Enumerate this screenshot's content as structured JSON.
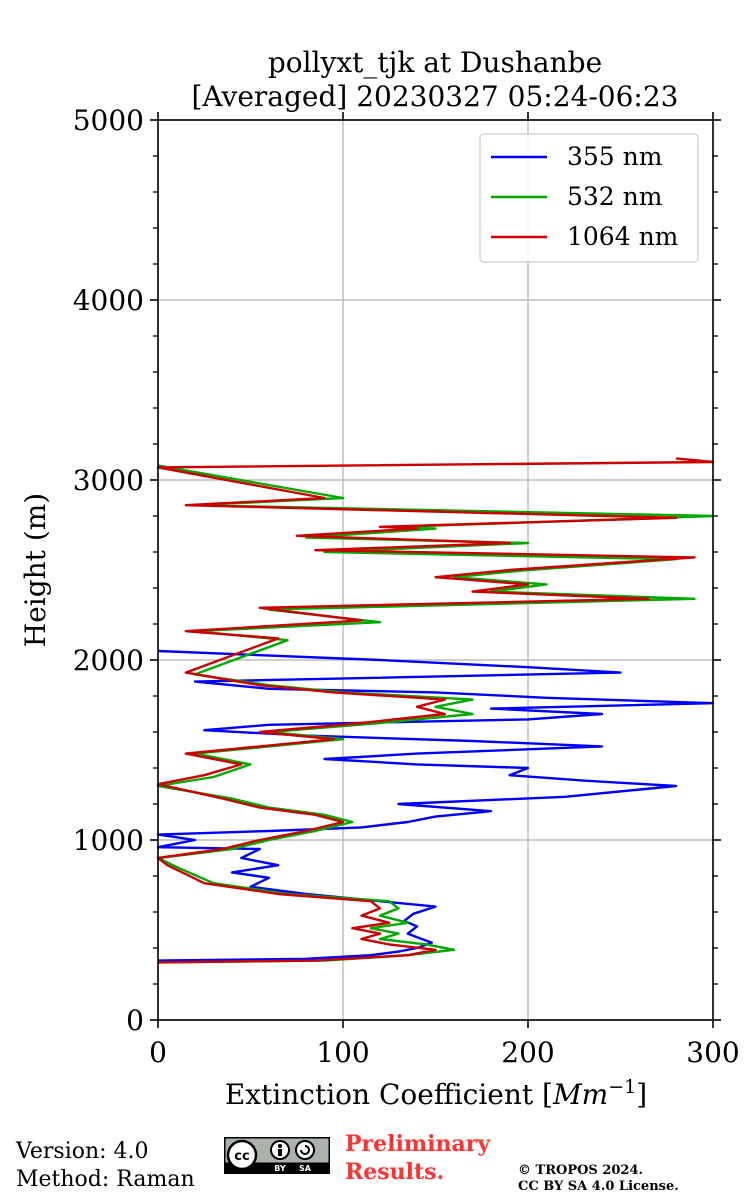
{
  "chart_data": {
    "type": "line",
    "title_line1": "pollyxt_tjk at Dushanbe",
    "title_line2": "[Averaged] 20230327 05:24-06:23",
    "xlabel": "Extinction Coefficient [",
    "xlabel_unit_main": "Mm",
    "xlabel_unit_exp": "−1",
    "xlabel_close": "]",
    "ylabel": "Height (m)",
    "xlim": [
      0,
      300
    ],
    "ylim": [
      0,
      5000
    ],
    "xticks": [
      "0",
      "100",
      "200",
      "300"
    ],
    "yticks": [
      "0",
      "1000",
      "2000",
      "3000",
      "4000",
      "5000"
    ],
    "grid": true,
    "legend_position": "top-right",
    "series": [
      {
        "name": "355 nm",
        "color": "#0000ff",
        "points": [
          [
            0,
            330
          ],
          [
            80,
            340
          ],
          [
            115,
            360
          ],
          [
            130,
            380
          ],
          [
            140,
            400
          ],
          [
            148,
            430
          ],
          [
            140,
            460
          ],
          [
            135,
            480
          ],
          [
            140,
            520
          ],
          [
            133,
            550
          ],
          [
            138,
            590
          ],
          [
            150,
            630
          ],
          [
            120,
            660
          ],
          [
            80,
            700
          ],
          [
            50,
            740
          ],
          [
            60,
            790
          ],
          [
            40,
            820
          ],
          [
            65,
            860
          ],
          [
            45,
            900
          ],
          [
            55,
            950
          ],
          [
            0,
            960
          ],
          [
            20,
            1000
          ],
          [
            0,
            1030
          ],
          [
            60,
            1050
          ],
          [
            110,
            1070
          ],
          [
            135,
            1100
          ],
          [
            150,
            1130
          ],
          [
            180,
            1160
          ],
          [
            130,
            1200
          ],
          [
            220,
            1240
          ],
          [
            280,
            1300
          ],
          [
            230,
            1330
          ],
          [
            190,
            1360
          ],
          [
            200,
            1400
          ],
          [
            140,
            1420
          ],
          [
            90,
            1450
          ],
          [
            140,
            1480
          ],
          [
            240,
            1520
          ],
          [
            170,
            1550
          ],
          [
            80,
            1580
          ],
          [
            25,
            1610
          ],
          [
            60,
            1640
          ],
          [
            200,
            1670
          ],
          [
            240,
            1700
          ],
          [
            180,
            1730
          ],
          [
            300,
            1760
          ],
          [
            210,
            1790
          ],
          [
            150,
            1820
          ],
          [
            60,
            1840
          ],
          [
            20,
            1880
          ],
          [
            250,
            1930
          ],
          [
            200,
            1960
          ],
          [
            120,
            2000
          ],
          [
            0,
            2050
          ]
        ]
      },
      {
        "name": "532 nm",
        "color": "#00aa00",
        "points": [
          [
            0,
            320
          ],
          [
            90,
            330
          ],
          [
            135,
            360
          ],
          [
            160,
            390
          ],
          [
            145,
            420
          ],
          [
            120,
            450
          ],
          [
            130,
            480
          ],
          [
            115,
            510
          ],
          [
            135,
            540
          ],
          [
            120,
            580
          ],
          [
            130,
            620
          ],
          [
            125,
            660
          ],
          [
            70,
            700
          ],
          [
            30,
            760
          ],
          [
            10,
            850
          ],
          [
            0,
            900
          ],
          [
            40,
            950
          ],
          [
            60,
            1000
          ],
          [
            85,
            1050
          ],
          [
            105,
            1100
          ],
          [
            90,
            1140
          ],
          [
            60,
            1180
          ],
          [
            40,
            1230
          ],
          [
            0,
            1300
          ],
          [
            30,
            1350
          ],
          [
            50,
            1420
          ],
          [
            20,
            1480
          ],
          [
            60,
            1520
          ],
          [
            100,
            1560
          ],
          [
            60,
            1600
          ],
          [
            120,
            1650
          ],
          [
            170,
            1700
          ],
          [
            150,
            1740
          ],
          [
            170,
            1780
          ],
          [
            100,
            1820
          ],
          [
            60,
            1860
          ],
          [
            20,
            1920
          ],
          [
            70,
            2110
          ],
          [
            20,
            2160
          ],
          [
            120,
            2210
          ],
          [
            60,
            2280
          ],
          [
            290,
            2340
          ],
          [
            180,
            2380
          ],
          [
            210,
            2420
          ],
          [
            160,
            2460
          ],
          [
            200,
            2500
          ],
          [
            280,
            2560
          ],
          [
            90,
            2600
          ],
          [
            200,
            2650
          ],
          [
            80,
            2680
          ],
          [
            150,
            2730
          ],
          [
            130,
            2740
          ],
          [
            300,
            2800
          ],
          [
            20,
            2860
          ],
          [
            100,
            2900
          ],
          [
            0,
            3080
          ]
        ]
      },
      {
        "name": "1064 nm",
        "color": "#cc0000",
        "points": [
          [
            0,
            320
          ],
          [
            85,
            330
          ],
          [
            135,
            360
          ],
          [
            150,
            390
          ],
          [
            125,
            420
          ],
          [
            110,
            450
          ],
          [
            120,
            480
          ],
          [
            105,
            510
          ],
          [
            125,
            540
          ],
          [
            110,
            580
          ],
          [
            120,
            620
          ],
          [
            115,
            660
          ],
          [
            65,
            700
          ],
          [
            25,
            760
          ],
          [
            5,
            860
          ],
          [
            0,
            900
          ],
          [
            35,
            950
          ],
          [
            55,
            1000
          ],
          [
            80,
            1050
          ],
          [
            100,
            1100
          ],
          [
            85,
            1140
          ],
          [
            55,
            1180
          ],
          [
            35,
            1230
          ],
          [
            0,
            1310
          ],
          [
            25,
            1360
          ],
          [
            45,
            1420
          ],
          [
            15,
            1480
          ],
          [
            55,
            1520
          ],
          [
            95,
            1560
          ],
          [
            55,
            1600
          ],
          [
            110,
            1650
          ],
          [
            155,
            1700
          ],
          [
            140,
            1740
          ],
          [
            155,
            1780
          ],
          [
            95,
            1820
          ],
          [
            55,
            1860
          ],
          [
            15,
            1930
          ],
          [
            65,
            2120
          ],
          [
            15,
            2160
          ],
          [
            110,
            2220
          ],
          [
            55,
            2290
          ],
          [
            265,
            2340
          ],
          [
            170,
            2380
          ],
          [
            200,
            2420
          ],
          [
            150,
            2460
          ],
          [
            190,
            2500
          ],
          [
            290,
            2570
          ],
          [
            85,
            2610
          ],
          [
            190,
            2650
          ],
          [
            75,
            2690
          ],
          [
            140,
            2730
          ],
          [
            120,
            2740
          ],
          [
            280,
            2790
          ],
          [
            15,
            2860
          ],
          [
            90,
            2900
          ],
          [
            0,
            3070
          ],
          [
            300,
            3100
          ],
          [
            280,
            3120
          ]
        ]
      }
    ]
  },
  "footer": {
    "version": "Version: 4.0",
    "method": "Method: Raman",
    "prelim_line1": "Preliminary",
    "prelim_line2": "Results.",
    "copyright1": "© TROPOS 2024.",
    "copyright2": "CC BY SA 4.0 License.",
    "cc_icon_text": "cc",
    "cc_by": "BY",
    "cc_sa": "SA"
  }
}
